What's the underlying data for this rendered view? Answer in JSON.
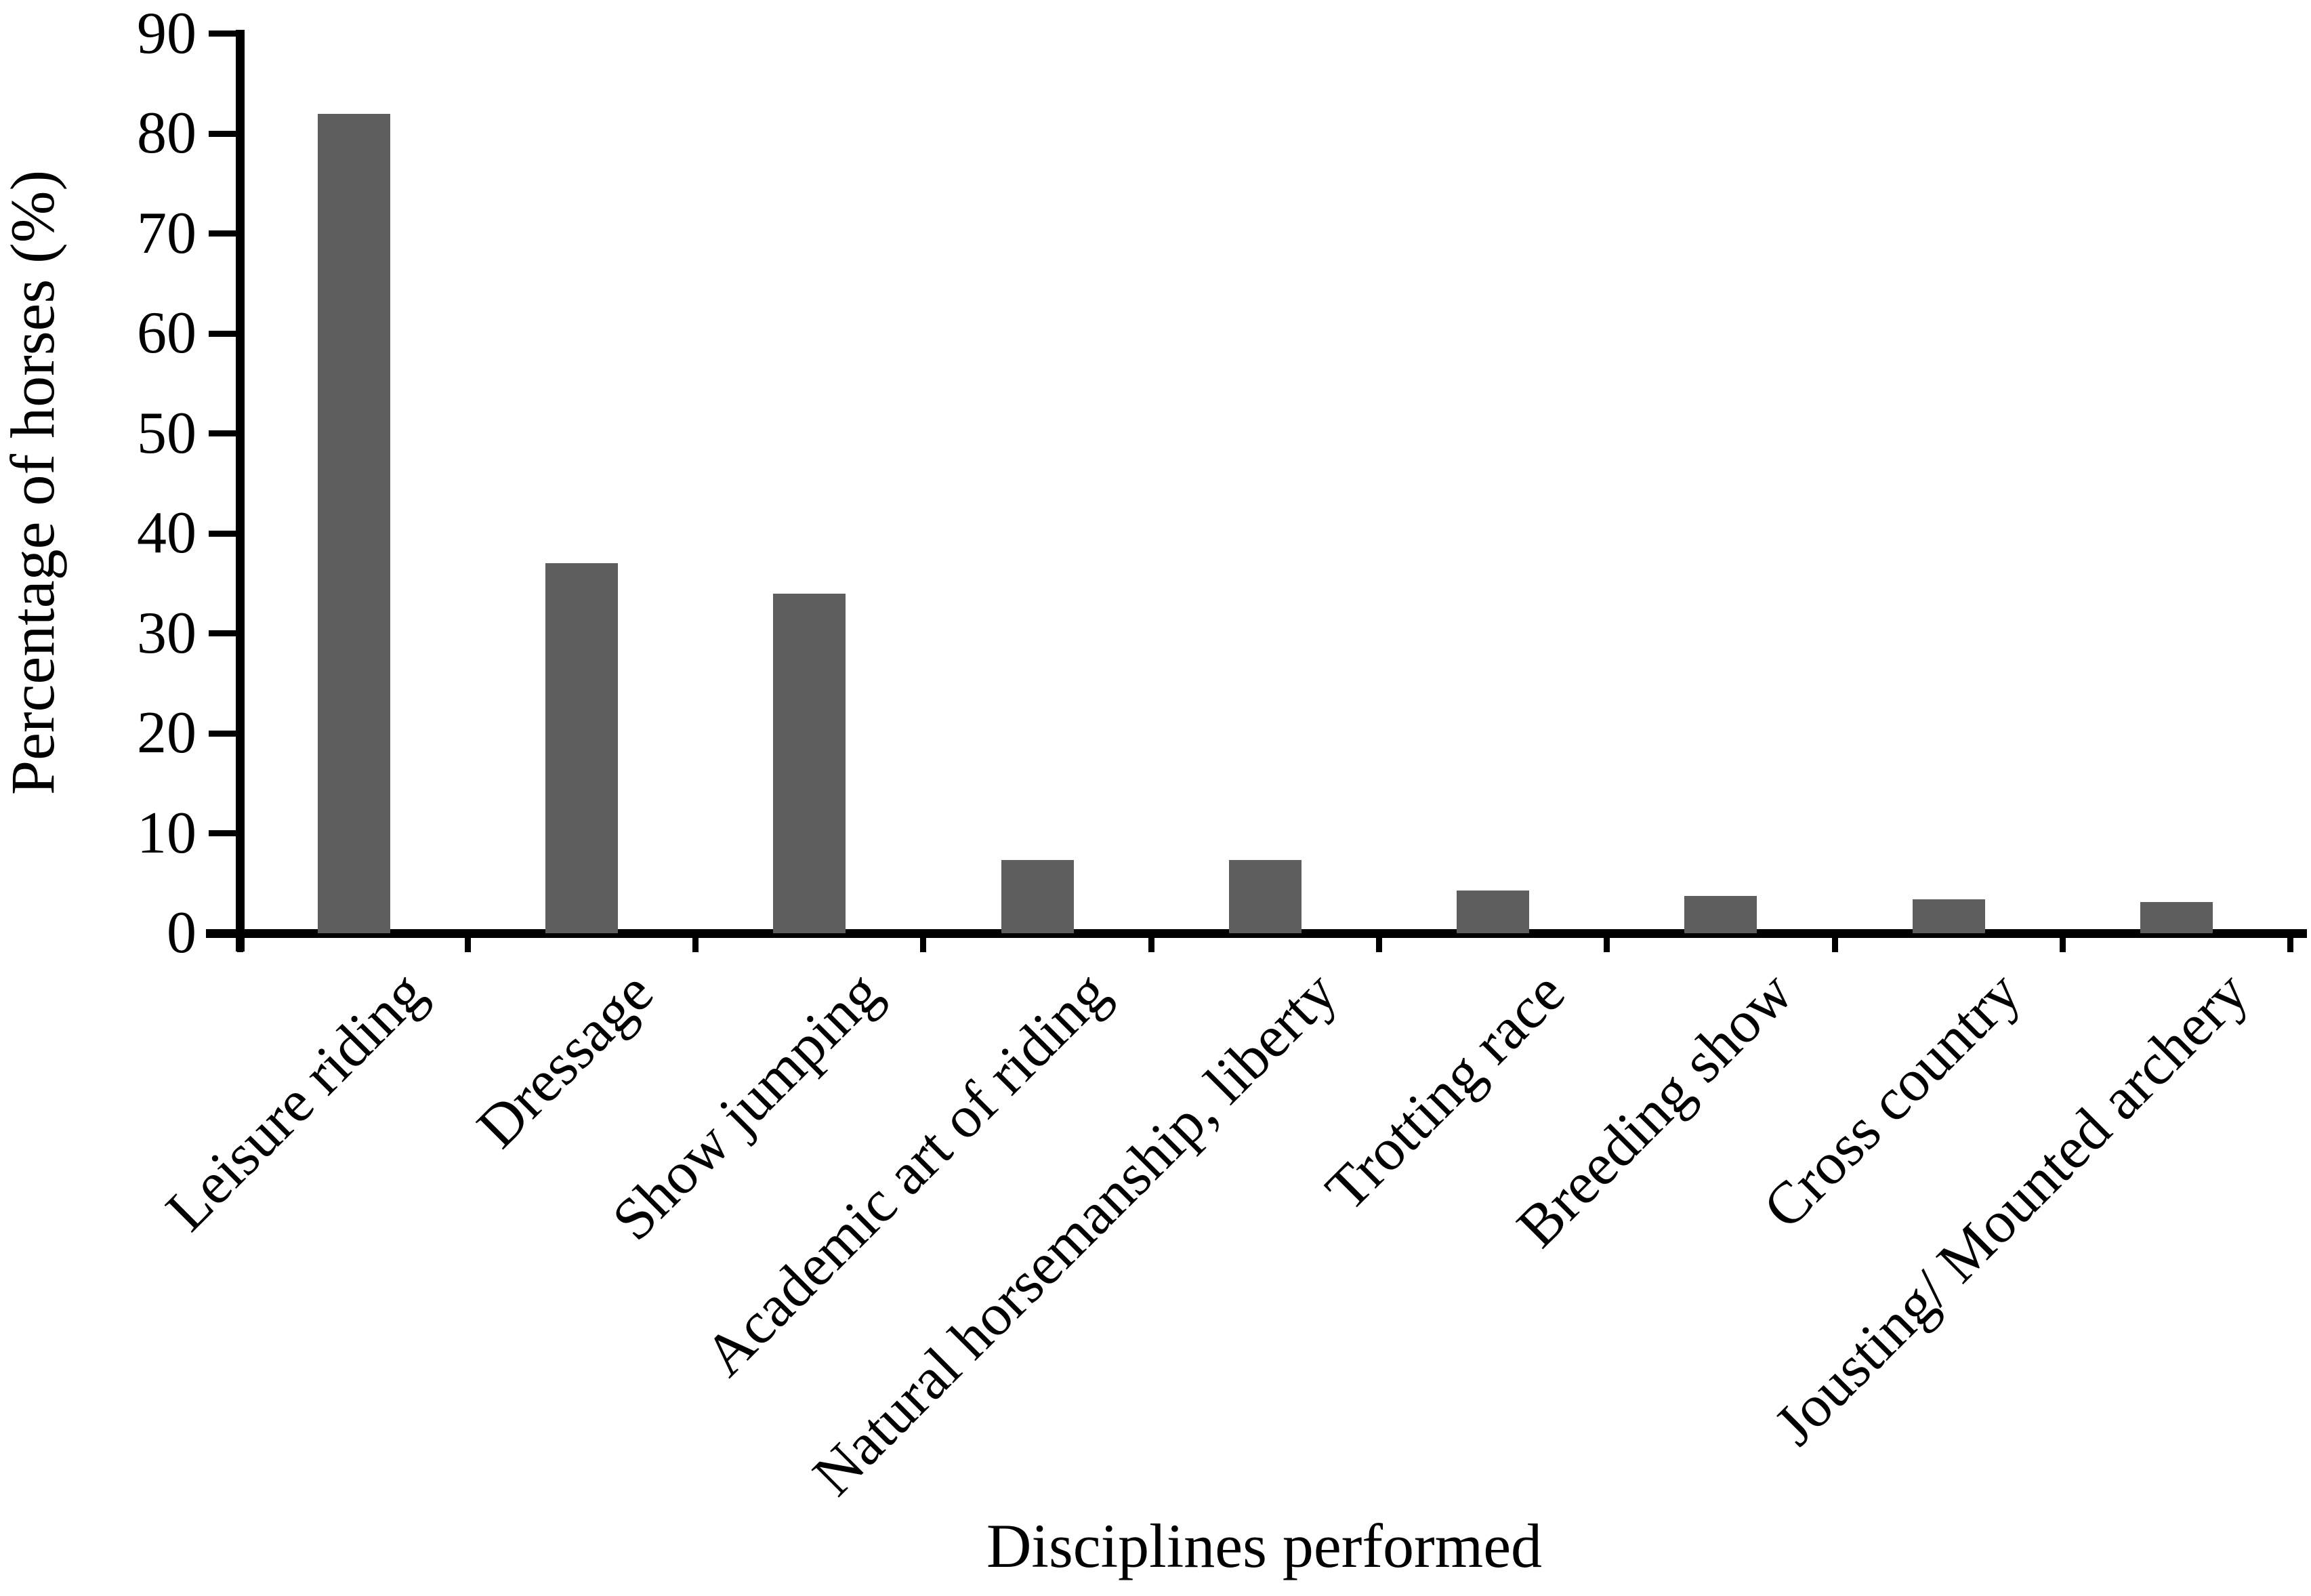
{
  "figure": {
    "background": "#ffffff",
    "axis_color": "#000000",
    "text_color": "#000000"
  },
  "chart_data": {
    "type": "bar",
    "title": "",
    "xlabel": "Disciplines performed",
    "ylabel": "Percentage of horses (%)",
    "categories": [
      "Leisure riding",
      "Dressage",
      "Show jumping",
      "Academic art of riding",
      "Natural horsemanship, liberty",
      "Trotting race",
      "Breeding show",
      "Cross country",
      "Jousting/ Mounted archery"
    ],
    "values": [
      82,
      37,
      34,
      7.3,
      7.3,
      4.3,
      3.7,
      3.4,
      3.1
    ],
    "bar_color": "#5e5e5e",
    "ylim": [
      0,
      90
    ],
    "yticks": [
      0,
      10,
      20,
      30,
      40,
      50,
      60,
      70,
      80,
      90
    ],
    "xtick_label_rotation_deg": 45,
    "grid": false,
    "legend": "none"
  }
}
